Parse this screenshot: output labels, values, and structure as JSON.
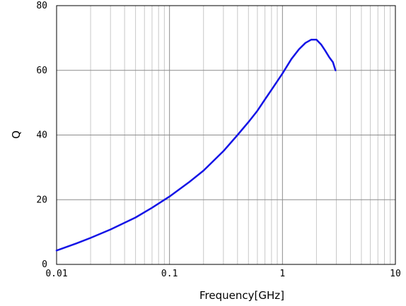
{
  "chart_data": {
    "type": "line",
    "title": "",
    "xlabel": "Frequency[GHz]",
    "ylabel": "Q",
    "xscale": "log",
    "xlim": [
      0.01,
      10
    ],
    "ylim": [
      0,
      80
    ],
    "x_ticks": [
      {
        "value": 0.01,
        "label": "0.01"
      },
      {
        "value": 0.1,
        "label": "0.1"
      },
      {
        "value": 1,
        "label": "1"
      },
      {
        "value": 10,
        "label": "10"
      }
    ],
    "y_ticks": [
      {
        "value": 0,
        "label": "0"
      },
      {
        "value": 20,
        "label": "20"
      },
      {
        "value": 40,
        "label": "40"
      },
      {
        "value": 60,
        "label": "60"
      },
      {
        "value": 80,
        "label": "80"
      }
    ],
    "grid": true,
    "line_color": "#1414e6",
    "series": [
      {
        "x": [
          0.01,
          0.015,
          0.02,
          0.03,
          0.05,
          0.07,
          0.1,
          0.15,
          0.2,
          0.3,
          0.4,
          0.5,
          0.6,
          0.7,
          0.8,
          1.0,
          1.2,
          1.4,
          1.6,
          1.8,
          2.0,
          2.2,
          2.4,
          2.6,
          2.8,
          2.95
        ],
        "y": [
          4.3,
          6.5,
          8.2,
          10.8,
          14.5,
          17.5,
          21.0,
          25.5,
          29.0,
          35.0,
          40.0,
          44.0,
          47.5,
          51.0,
          54.0,
          59.0,
          63.5,
          66.5,
          68.5,
          69.5,
          69.5,
          68.0,
          66.0,
          64.0,
          62.5,
          60.0
        ]
      }
    ]
  }
}
